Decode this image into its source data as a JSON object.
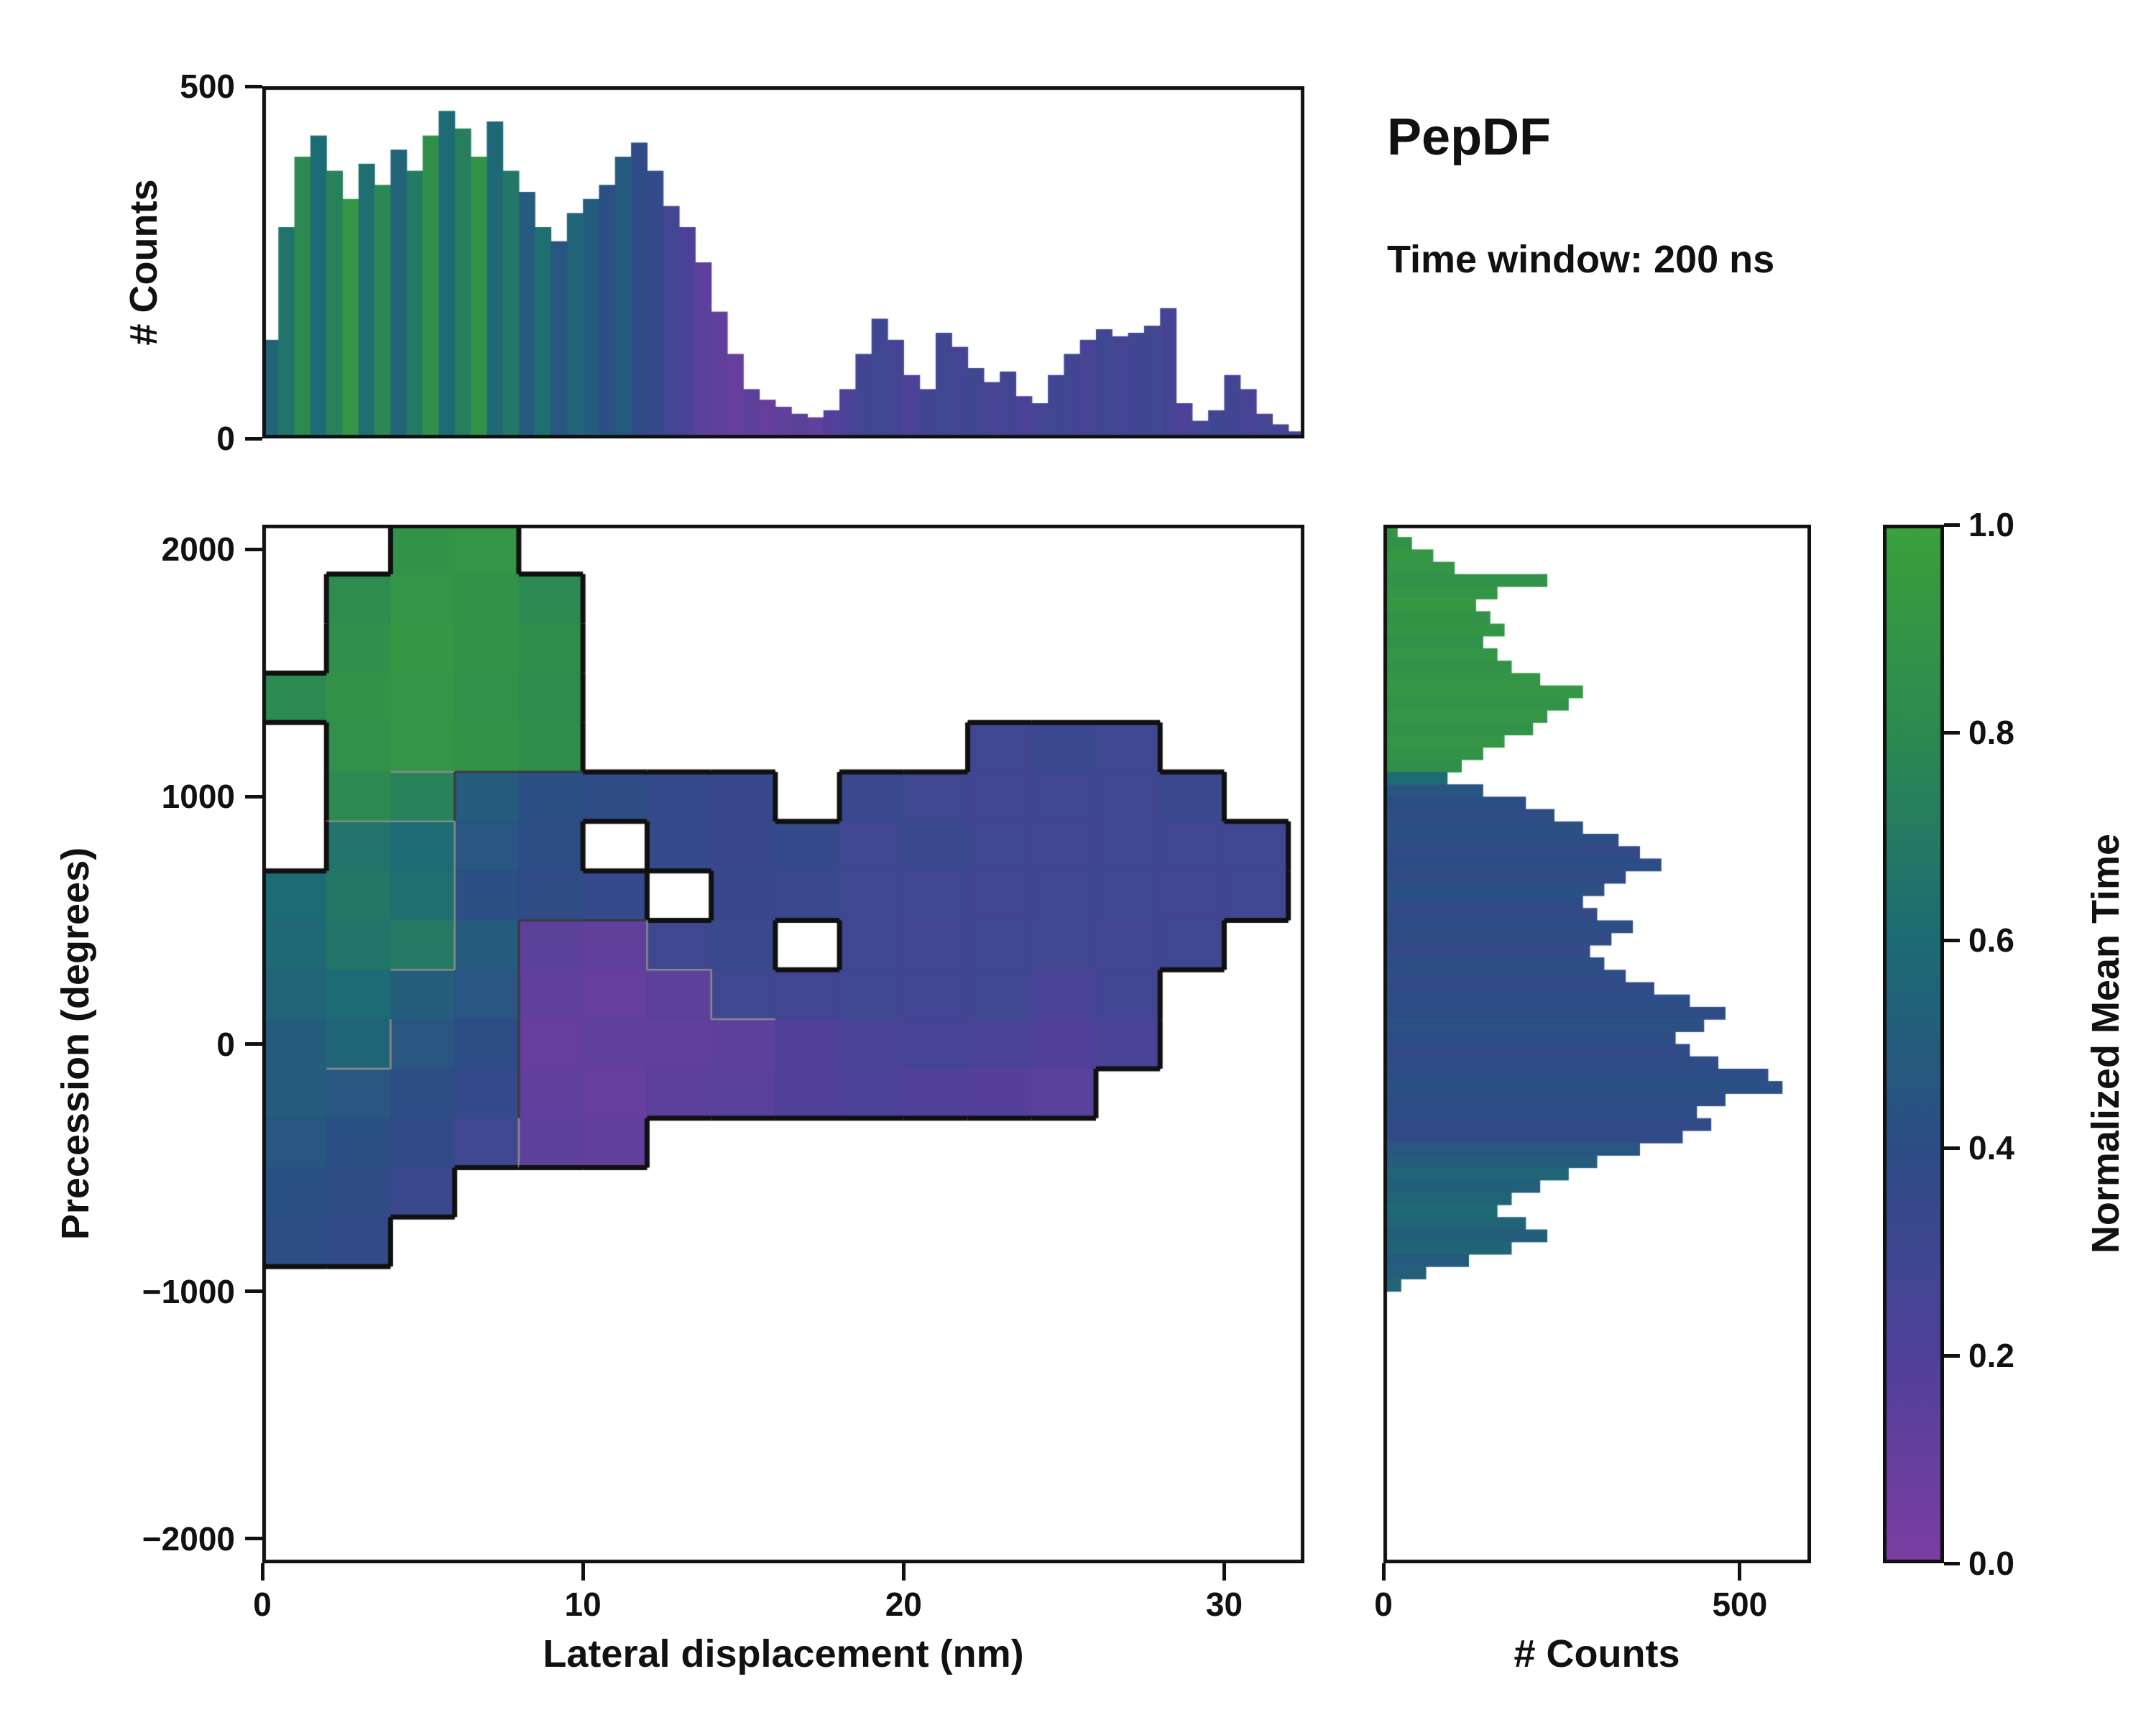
{
  "chart_data": {
    "type": "heatmap",
    "title": "PepDF",
    "subtitle": "Time window: 200 ns",
    "main": {
      "type": "heatmap",
      "xlabel": "Lateral displacement (nm)",
      "ylabel": "Precession (degrees)",
      "xlim": [
        0,
        32.5
      ],
      "ylim": [
        -2100,
        2100
      ],
      "xticks": [
        {
          "v": 0,
          "label": "0"
        },
        {
          "v": 10,
          "label": "10"
        },
        {
          "v": 20,
          "label": "20"
        },
        {
          "v": 30,
          "label": "30"
        }
      ],
      "yticks": [
        {
          "v": 2000,
          "label": "2000"
        },
        {
          "v": 1000,
          "label": "1000"
        },
        {
          "v": 0,
          "label": "0"
        },
        {
          "v": -1000,
          "label": "−1000"
        },
        {
          "v": -2000,
          "label": "−2000"
        }
      ],
      "grid": {
        "x0": 0,
        "dx": 2,
        "y_top": 2100,
        "dy": 200,
        "cols": 16,
        "rows": 15,
        "values": [
          [
            null,
            null,
            0.88,
            0.9,
            null,
            null,
            null,
            null,
            null,
            null,
            null,
            null,
            null,
            null,
            null,
            null
          ],
          [
            null,
            0.82,
            0.9,
            0.88,
            0.8,
            null,
            null,
            null,
            null,
            null,
            null,
            null,
            null,
            null,
            null,
            null
          ],
          [
            null,
            0.85,
            0.92,
            0.88,
            0.84,
            null,
            null,
            null,
            null,
            null,
            null,
            null,
            null,
            null,
            null,
            null
          ],
          [
            0.8,
            0.88,
            0.9,
            0.86,
            0.82,
            null,
            null,
            null,
            null,
            null,
            null,
            null,
            null,
            null,
            null,
            null
          ],
          [
            null,
            0.86,
            0.9,
            0.88,
            0.84,
            null,
            null,
            null,
            null,
            null,
            null,
            0.3,
            0.32,
            0.3,
            null,
            null
          ],
          [
            null,
            0.8,
            0.75,
            0.5,
            0.42,
            0.38,
            0.35,
            0.33,
            null,
            0.32,
            0.3,
            0.28,
            0.3,
            0.3,
            0.32,
            null
          ],
          [
            null,
            0.65,
            0.6,
            0.45,
            0.4,
            null,
            0.35,
            0.33,
            0.35,
            0.3,
            0.32,
            0.3,
            0.28,
            0.3,
            0.3,
            0.3
          ],
          [
            0.6,
            0.68,
            0.62,
            0.42,
            0.38,
            0.35,
            null,
            0.33,
            0.32,
            0.3,
            0.3,
            0.28,
            0.3,
            0.3,
            0.28,
            0.3
          ],
          [
            0.58,
            0.66,
            0.7,
            0.5,
            0.15,
            0.12,
            0.3,
            0.32,
            null,
            0.3,
            0.28,
            0.3,
            0.3,
            0.28,
            0.3,
            null
          ],
          [
            0.55,
            0.6,
            0.52,
            0.45,
            0.12,
            0.1,
            0.14,
            0.3,
            0.28,
            0.3,
            0.28,
            0.3,
            0.24,
            0.28,
            null,
            null
          ],
          [
            0.5,
            0.56,
            0.46,
            0.4,
            0.1,
            0.12,
            0.12,
            0.14,
            0.2,
            0.24,
            0.26,
            0.24,
            0.2,
            0.24,
            null,
            null
          ],
          [
            0.5,
            0.46,
            0.4,
            0.35,
            0.12,
            0.1,
            0.14,
            0.16,
            0.2,
            0.22,
            0.2,
            0.18,
            0.16,
            null,
            null,
            null
          ],
          [
            0.46,
            0.42,
            0.36,
            0.3,
            0.14,
            0.12,
            null,
            null,
            null,
            null,
            null,
            null,
            null,
            null,
            null,
            null
          ],
          [
            0.42,
            0.38,
            0.32,
            null,
            null,
            null,
            null,
            null,
            null,
            null,
            null,
            null,
            null,
            null,
            null,
            null
          ],
          [
            0.4,
            0.36,
            null,
            null,
            null,
            null,
            null,
            null,
            null,
            null,
            null,
            null,
            null,
            null,
            null,
            null
          ]
        ]
      }
    },
    "top_hist": {
      "type": "bar",
      "ylabel": "# Counts",
      "ylim": [
        0,
        500
      ],
      "yticks": [
        {
          "v": 0,
          "label": "0"
        },
        {
          "v": 500,
          "label": "500"
        }
      ],
      "bin_start": 0,
      "bin_width": 0.5,
      "counts": [
        140,
        300,
        400,
        430,
        380,
        340,
        390,
        360,
        410,
        380,
        430,
        465,
        440,
        400,
        450,
        380,
        350,
        300,
        280,
        320,
        340,
        360,
        400,
        420,
        380,
        330,
        300,
        250,
        180,
        120,
        70,
        55,
        45,
        35,
        30,
        40,
        70,
        120,
        170,
        140,
        90,
        70,
        150,
        130,
        100,
        80,
        95,
        60,
        50,
        90,
        120,
        140,
        155,
        145,
        150,
        160,
        185,
        50,
        25,
        40,
        90,
        70,
        35,
        20,
        10
      ],
      "norm": [
        0.55,
        0.65,
        0.8,
        0.6,
        0.75,
        0.9,
        0.62,
        0.78,
        0.55,
        0.7,
        0.85,
        0.6,
        0.72,
        0.88,
        0.58,
        0.68,
        0.5,
        0.62,
        0.45,
        0.55,
        0.5,
        0.42,
        0.48,
        0.38,
        0.35,
        0.28,
        0.22,
        0.15,
        0.12,
        0.1,
        0.14,
        0.1,
        0.12,
        0.16,
        0.12,
        0.18,
        0.22,
        0.28,
        0.3,
        0.26,
        0.22,
        0.28,
        0.3,
        0.26,
        0.3,
        0.24,
        0.28,
        0.22,
        0.26,
        0.3,
        0.28,
        0.24,
        0.3,
        0.26,
        0.28,
        0.3,
        0.26,
        0.22,
        0.26,
        0.3,
        0.28,
        0.24,
        0.28,
        0.25,
        0.3
      ]
    },
    "right_hist": {
      "type": "bar",
      "xlabel": "# Counts",
      "xlim": [
        0,
        600
      ],
      "xticks": [
        {
          "v": 0,
          "label": "0"
        },
        {
          "v": 500,
          "label": "500"
        }
      ],
      "bin_start": 2100,
      "bin_width": -50,
      "counts": [
        20,
        40,
        70,
        100,
        230,
        160,
        130,
        150,
        170,
        140,
        160,
        180,
        220,
        280,
        260,
        230,
        210,
        170,
        140,
        110,
        90,
        140,
        200,
        240,
        280,
        330,
        360,
        390,
        340,
        310,
        280,
        300,
        350,
        320,
        290,
        310,
        340,
        380,
        430,
        480,
        450,
        410,
        430,
        470,
        540,
        560,
        480,
        440,
        460,
        420,
        360,
        300,
        260,
        220,
        180,
        160,
        200,
        230,
        180,
        120,
        60,
        25
      ],
      "norm": [
        0.9,
        0.88,
        0.92,
        0.9,
        0.87,
        0.9,
        0.92,
        0.88,
        0.9,
        0.86,
        0.9,
        0.88,
        0.9,
        0.92,
        0.88,
        0.9,
        0.87,
        0.9,
        0.88,
        0.85,
        0.6,
        0.45,
        0.4,
        0.38,
        0.42,
        0.4,
        0.36,
        0.4,
        0.38,
        0.42,
        0.4,
        0.36,
        0.4,
        0.38,
        0.35,
        0.4,
        0.38,
        0.36,
        0.4,
        0.38,
        0.42,
        0.4,
        0.36,
        0.38,
        0.4,
        0.42,
        0.38,
        0.4,
        0.36,
        0.38,
        0.45,
        0.5,
        0.55,
        0.52,
        0.55,
        0.58,
        0.55,
        0.52,
        0.55,
        0.5,
        0.52,
        0.55
      ]
    },
    "colorbar": {
      "label": "Normalized Mean Time",
      "ticks": [
        {
          "v": 1.0,
          "label": "1.0"
        },
        {
          "v": 0.8,
          "label": "0.8"
        },
        {
          "v": 0.6,
          "label": "0.6"
        },
        {
          "v": 0.4,
          "label": "0.4"
        },
        {
          "v": 0.2,
          "label": "0.2"
        },
        {
          "v": 0.0,
          "label": "0.0"
        }
      ],
      "stops": [
        [
          0.0,
          "#7b3ea1"
        ],
        [
          0.2,
          "#50409a"
        ],
        [
          0.4,
          "#2c4d85"
        ],
        [
          0.6,
          "#1d6b74"
        ],
        [
          0.8,
          "#2c8a50"
        ],
        [
          1.0,
          "#3ba03c"
        ]
      ]
    },
    "colors": {
      "frame": "#111111",
      "background": "#ffffff",
      "contour_outline": "#101010",
      "contour_inner": "#8a8a8a"
    }
  }
}
